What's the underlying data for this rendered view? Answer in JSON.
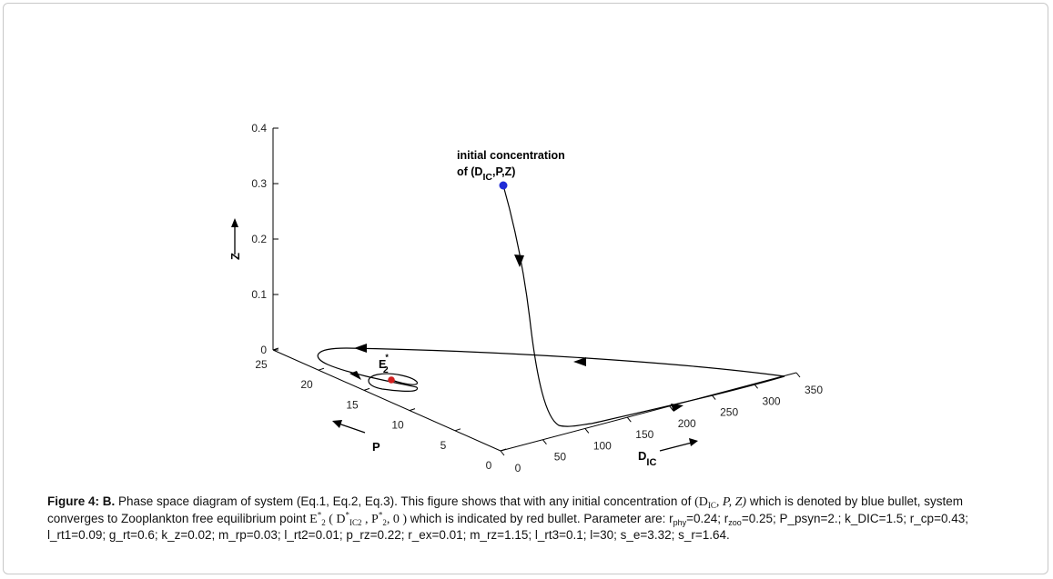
{
  "chart_data": {
    "type": "line",
    "subtype": "3d-phase-trajectory",
    "axes": {
      "x": {
        "label": "D",
        "label_sub": "IC",
        "ticks": [
          "0",
          "50",
          "100",
          "150",
          "200",
          "250",
          "300",
          "350"
        ],
        "range": [
          0,
          350
        ]
      },
      "y": {
        "label": "P",
        "ticks": [
          "0",
          "5",
          "10",
          "15",
          "20",
          "25"
        ],
        "range": [
          0,
          25
        ]
      },
      "z": {
        "label": "Z",
        "ticks": [
          "0",
          "0.1",
          "0.2",
          "0.3",
          "0.4"
        ],
        "range": [
          0,
          0.4
        ]
      }
    },
    "points": [
      {
        "name": "initial",
        "label_line1": "initial concentration",
        "label_line2_prefix": "of (D",
        "label_line2_sub": "IC",
        "label_line2_suffix": ",P,Z)",
        "color": "#1f2bd6"
      },
      {
        "name": "E2",
        "label": "E",
        "label_sub": "2",
        "label_sup": "*",
        "color": "#d22020"
      }
    ],
    "trajectory_color": "#000000",
    "grid": false
  },
  "caption": {
    "figure_label": "Figure 4: B.",
    "part1": " Phase space diagram of system (Eq.1, Eq.2, Eq.3). This figure shows that with any initial concentration of ",
    "tuple_open": "(D",
    "tuple_sub": "IC",
    "tuple_close": ", P, Z)",
    "part2": " which is denoted by blue bullet, system converges to Zooplankton free equilibrium point ",
    "eq_E": "E",
    "eq_E_sup": "*",
    "eq_E_sub": "2",
    "eq_tuple_open": " ( D",
    "eq_tuple_sup1": "*",
    "eq_tuple_sub1": "IC",
    "eq_tuple_sub1b": "2",
    "eq_tuple_mid": " , P",
    "eq_tuple_sup2": "*",
    "eq_tuple_sub2": "2",
    "eq_tuple_close": ", 0 )",
    "part3": " which is indicated by red bullet. Parameter are: r",
    "rphy_sub": "phy",
    "rphy_val": "=0.24; r",
    "rzoo_sub": "zoo",
    "rest": "=0.25; P_psyn=2.; k_DIC=1.5; r_cp=0.43; l_rt1=0.09; g_rt=0.6; k_z=0.02; m_rp=0.03; l_rt2=0.01; p_rz=0.22; r_ex=0.01; m_rz=1.15; l_rt3=0.1; l=30; s_e=3.32; s_r=1.64."
  }
}
